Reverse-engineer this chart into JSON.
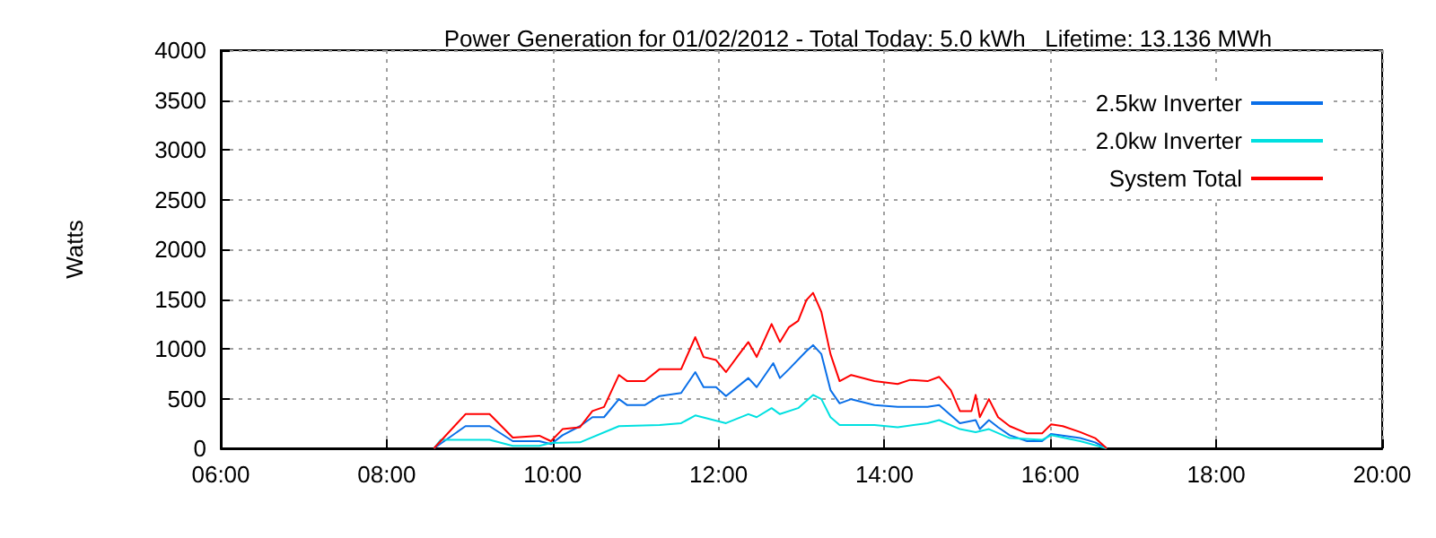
{
  "chart_data": {
    "type": "line",
    "title": "Power Generation for 01/02/2012 - Total Today: 5.0 kWh   Lifetime: 13.136 MWh",
    "ylabel": "Watts",
    "xlim": [
      6,
      20
    ],
    "xticks": [
      {
        "value": 6,
        "label": "06:00"
      },
      {
        "value": 8,
        "label": "08:00"
      },
      {
        "value": 10,
        "label": "10:00"
      },
      {
        "value": 12,
        "label": "12:00"
      },
      {
        "value": 14,
        "label": "14:00"
      },
      {
        "value": 16,
        "label": "16:00"
      },
      {
        "value": 18,
        "label": "18:00"
      },
      {
        "value": 20,
        "label": "20:00"
      }
    ],
    "ylim": [
      0,
      4000
    ],
    "yticks": [
      0,
      500,
      1000,
      1500,
      2000,
      2500,
      3000,
      3500,
      4000
    ],
    "grid": true,
    "legend": "top right",
    "line_style": "solid",
    "series": [
      {
        "name": "2.5kw Inverter",
        "color": "#0a6fe8",
        "x": [
          8.57,
          8.95,
          9.24,
          9.52,
          9.84,
          9.98,
          10.12,
          10.33,
          10.48,
          10.62,
          10.8,
          10.9,
          11.11,
          11.29,
          11.55,
          11.72,
          11.82,
          11.97,
          12.09,
          12.36,
          12.46,
          12.66,
          12.74,
          12.85,
          13.06,
          13.14,
          13.24,
          13.35,
          13.46,
          13.6,
          13.88,
          14.16,
          14.52,
          14.66,
          14.91,
          15.1,
          15.15,
          15.26,
          15.37,
          15.51,
          15.72,
          15.9,
          16.01,
          16.36,
          16.54,
          16.68
        ],
        "values": [
          0,
          223,
          223,
          72,
          72,
          42,
          132,
          223,
          313,
          313,
          494,
          434,
          434,
          525,
          556,
          766,
          615,
          615,
          525,
          706,
          615,
          856,
          706,
          796,
          977,
          1037,
          947,
          585,
          452,
          494,
          434,
          416,
          416,
          434,
          253,
          284,
          193,
          284,
          212,
          132,
          72,
          72,
          145,
          103,
          60,
          0
        ]
      },
      {
        "name": "2.0kw Inverter",
        "color": "#00e0e0",
        "x": [
          8.57,
          8.65,
          9.24,
          9.52,
          9.84,
          9.98,
          10.33,
          10.8,
          11.29,
          11.55,
          11.72,
          12.09,
          12.36,
          12.46,
          12.64,
          12.74,
          12.96,
          13.14,
          13.24,
          13.35,
          13.46,
          13.88,
          14.16,
          14.52,
          14.66,
          14.91,
          15.1,
          15.26,
          15.51,
          15.9,
          16.01,
          16.36,
          16.68
        ],
        "values": [
          0,
          85,
          85,
          24,
          24,
          54,
          60,
          223,
          235,
          253,
          331,
          253,
          344,
          313,
          404,
          344,
          404,
          537,
          494,
          313,
          235,
          235,
          212,
          253,
          284,
          193,
          163,
          193,
          103,
          85,
          132,
          72,
          0
        ]
      },
      {
        "name": "System Total",
        "color": "#ff0000",
        "x": [
          8.57,
          8.95,
          9.24,
          9.52,
          9.84,
          9.98,
          10.12,
          10.33,
          10.48,
          10.62,
          10.8,
          10.9,
          11.11,
          11.29,
          11.55,
          11.72,
          11.82,
          11.97,
          12.09,
          12.25,
          12.36,
          12.46,
          12.64,
          12.74,
          12.85,
          12.96,
          13.06,
          13.14,
          13.24,
          13.35,
          13.46,
          13.6,
          13.88,
          14.16,
          14.31,
          14.52,
          14.66,
          14.8,
          14.91,
          15.05,
          15.1,
          15.15,
          15.26,
          15.37,
          15.51,
          15.72,
          15.9,
          16.01,
          16.15,
          16.36,
          16.54,
          16.68
        ],
        "values": [
          0,
          344,
          344,
          108,
          127,
          72,
          193,
          212,
          375,
          416,
          737,
          675,
          675,
          796,
          796,
          1117,
          918,
          887,
          766,
          947,
          1068,
          918,
          1249,
          1068,
          1218,
          1280,
          1490,
          1562,
          1370,
          947,
          675,
          737,
          675,
          646,
          688,
          675,
          718,
          585,
          375,
          375,
          537,
          313,
          494,
          313,
          223,
          150,
          150,
          241,
          223,
          163,
          103,
          0
        ]
      }
    ]
  }
}
